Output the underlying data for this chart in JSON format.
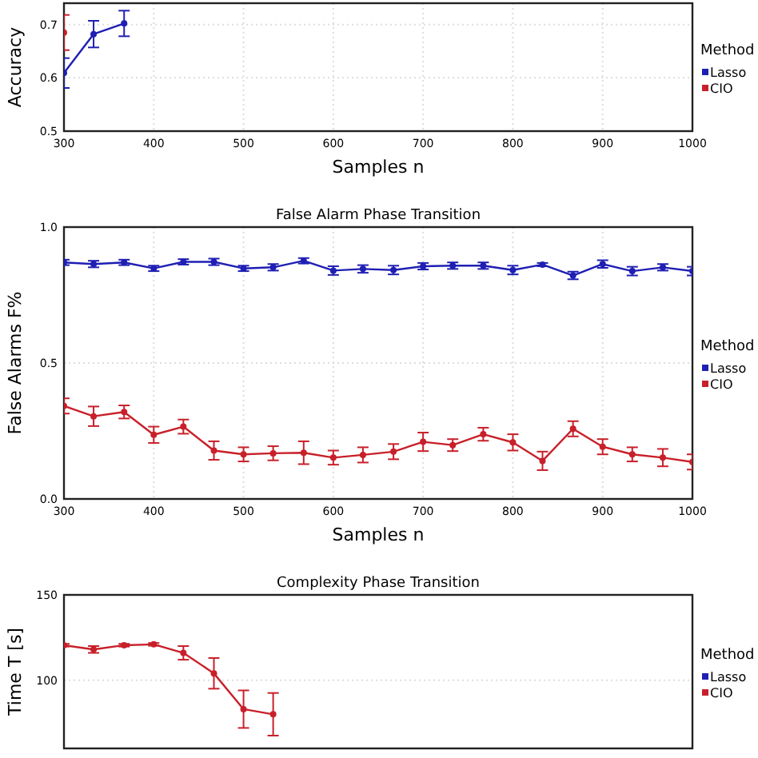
{
  "chart_data": [
    {
      "type": "line",
      "ylabel": "Accuracy",
      "xlabel": "Samples n",
      "xlim": [
        300,
        1000
      ],
      "xticks": [
        300,
        400,
        500,
        600,
        700,
        800,
        900,
        1000
      ],
      "ylim": [
        0.5,
        0.74
      ],
      "yticks": [
        0.5,
        0.6,
        0.7
      ],
      "grid": true,
      "marker": "circle",
      "legend": "right",
      "legend_title": "Method",
      "x": [
        300,
        333,
        367
      ],
      "series": [
        {
          "name": "Lasso",
          "color": "#1f1fb4",
          "values": [
            0.609,
            0.682,
            0.702
          ],
          "errors": [
            0.028,
            0.025,
            0.024
          ]
        },
        {
          "name": "CIO",
          "color": "#c8202a",
          "values": [
            0.685,
            null,
            null
          ],
          "errors": [
            0.033,
            null,
            null
          ]
        }
      ]
    },
    {
      "type": "line",
      "title": "False Alarm Phase Transition",
      "ylabel": "False Alarms F%",
      "xlabel": "Samples n",
      "xlim": [
        300,
        1000
      ],
      "xticks": [
        300,
        400,
        500,
        600,
        700,
        800,
        900,
        1000
      ],
      "ylim": [
        0,
        1
      ],
      "yticks": [
        {
          "value": 0,
          "label": "0.0"
        },
        0.5,
        {
          "value": 1,
          "label": "1.0"
        }
      ],
      "grid": true,
      "marker": "circle",
      "legend": "right",
      "legend_title": "Method",
      "x": [
        300,
        333,
        367,
        400,
        433,
        467,
        500,
        533,
        567,
        600,
        633,
        667,
        700,
        733,
        767,
        800,
        833,
        867,
        900,
        933,
        967,
        1000
      ],
      "series": [
        {
          "name": "Lasso",
          "color": "#1f1fb4",
          "values": [
            0.87,
            0.864,
            0.87,
            0.848,
            0.872,
            0.872,
            0.848,
            0.852,
            0.876,
            0.84,
            0.846,
            0.842,
            0.856,
            0.858,
            0.858,
            0.842,
            0.862,
            0.822,
            0.864,
            0.838,
            0.852,
            0.838
          ],
          "errors": [
            0.01,
            0.012,
            0.01,
            0.01,
            0.01,
            0.012,
            0.01,
            0.012,
            0.01,
            0.016,
            0.014,
            0.016,
            0.012,
            0.012,
            0.012,
            0.016,
            0.006,
            0.014,
            0.014,
            0.016,
            0.012,
            0.016
          ]
        },
        {
          "name": "CIO",
          "color": "#c8202a",
          "values": [
            0.342,
            0.304,
            0.32,
            0.236,
            0.266,
            0.178,
            0.164,
            0.168,
            0.17,
            0.152,
            0.162,
            0.174,
            0.21,
            0.198,
            0.238,
            0.208,
            0.14,
            0.258,
            0.192,
            0.164,
            0.152,
            0.136
          ],
          "errors": [
            0.028,
            0.036,
            0.024,
            0.03,
            0.026,
            0.034,
            0.026,
            0.026,
            0.042,
            0.026,
            0.028,
            0.028,
            0.034,
            0.022,
            0.024,
            0.03,
            0.034,
            0.028,
            0.028,
            0.026,
            0.032,
            0.028
          ]
        }
      ]
    },
    {
      "type": "line",
      "title": "Complexity Phase Transition",
      "ylabel": "Time T [s]",
      "xlim": [
        300,
        1000
      ],
      "ylim": [
        60,
        150
      ],
      "yticks": [
        100,
        150
      ],
      "tick_labels": "y",
      "grid": true,
      "marker": "circle",
      "legend": "right",
      "legend_title": "Method",
      "x": [
        300,
        333,
        367,
        400,
        433,
        467,
        500,
        533
      ],
      "series": [
        {
          "name": "Lasso",
          "color": "#1f1fb4",
          "values": [
            null,
            null,
            null,
            null,
            null,
            null,
            null,
            null
          ]
        },
        {
          "name": "CIO",
          "color": "#c8202a",
          "values": [
            120.5,
            118,
            120.5,
            121,
            116,
            104,
            83,
            80
          ],
          "errors": [
            0.8,
            2,
            0.8,
            0.8,
            4,
            9,
            11,
            12.5
          ]
        }
      ]
    }
  ]
}
